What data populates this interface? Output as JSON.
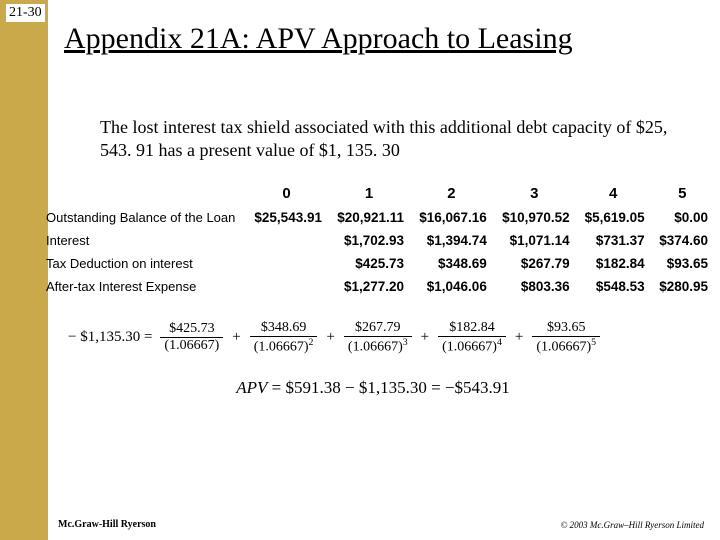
{
  "slide_number": "21-30",
  "title": "Appendix 21A: APV Approach to Leasing",
  "body": "The lost interest tax shield associated with this additional debt capacity of $25, 543. 91 has a present value of $1, 135. 30",
  "table": {
    "headers": [
      "0",
      "1",
      "2",
      "3",
      "4",
      "5"
    ],
    "rows": [
      {
        "label": "Outstanding Balance of the Loan",
        "vals": [
          "$25,543.91",
          "$20,921.11",
          "$16,067.16",
          "$10,970.52",
          "$5,619.05",
          "$0.00"
        ]
      },
      {
        "label": "Interest",
        "vals": [
          "",
          "$1,702.93",
          "$1,394.74",
          "$1,071.14",
          "$731.37",
          "$374.60"
        ]
      },
      {
        "label": "Tax Deduction on interest",
        "vals": [
          "",
          "$425.73",
          "$348.69",
          "$267.79",
          "$182.84",
          "$93.65"
        ]
      },
      {
        "label": "After-tax Interest Expense",
        "vals": [
          "",
          "$1,277.20",
          "$1,046.06",
          "$803.36",
          "$548.53",
          "$280.95"
        ]
      }
    ]
  },
  "formula1": {
    "lhs": "− $1,135.30 =",
    "terms": [
      {
        "num": "$425.73",
        "den": "(1.06667)"
      },
      {
        "num": "$348.69",
        "den_base": "(1.06667)",
        "den_exp": "2"
      },
      {
        "num": "$267.79",
        "den_base": "(1.06667)",
        "den_exp": "3"
      },
      {
        "num": "$182.84",
        "den_base": "(1.06667)",
        "den_exp": "4"
      },
      {
        "num": "$93.65",
        "den_base": "(1.06667)",
        "den_exp": "5"
      }
    ]
  },
  "formula2": {
    "lhs": "APV",
    "eq": " = $591.38 − $1,135.30 = −$543.91"
  },
  "footer_left": "Mc.Graw-Hill Ryerson",
  "footer_right": "© 2003 Mc.Graw–Hill Ryerson Limited"
}
